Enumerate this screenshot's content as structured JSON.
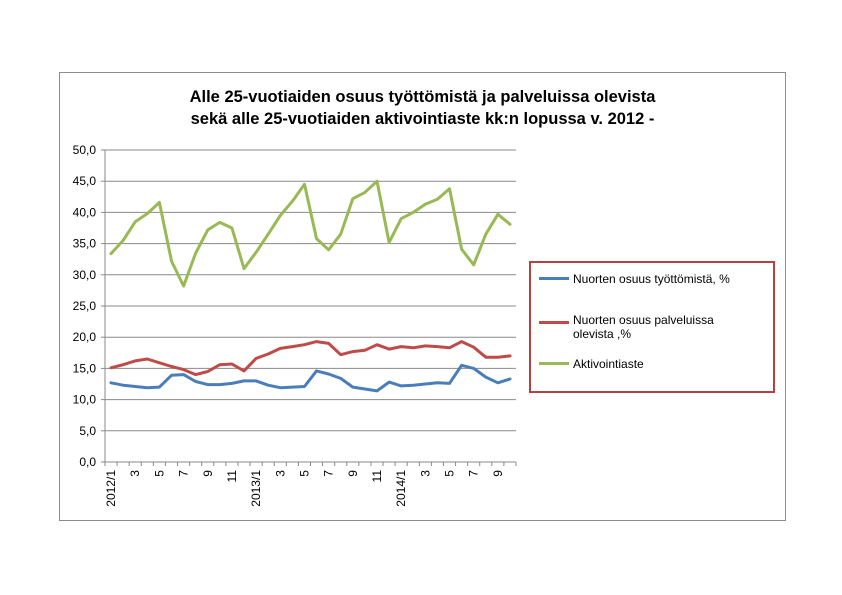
{
  "chart_data": {
    "type": "line",
    "title_lines": [
      "Alle 25-vuotiaiden osuus työttömistä ja palveluissa olevista",
      "sekä  alle 25-vuotiaiden aktivointiaste kk:n lopussa v. 2012 -"
    ],
    "xlabel": "",
    "ylabel": "",
    "ylim": [
      0,
      50
    ],
    "yticks": [
      "0,0",
      "5,0",
      "10,0",
      "15,0",
      "20,0",
      "25,0",
      "30,0",
      "35,0",
      "40,0",
      "45,0",
      "50,0"
    ],
    "x_tick_labels": [
      "2012/1",
      "",
      "3",
      "",
      "5",
      "",
      "7",
      "",
      "9",
      "",
      "11",
      "",
      "2013/1",
      "",
      "3",
      "",
      "5",
      "",
      "7",
      "",
      "9",
      "",
      "11",
      "",
      "2014/1",
      "",
      "3",
      "",
      "5",
      "",
      "7",
      "",
      "9",
      ""
    ],
    "grid": true,
    "legend_position": "right",
    "series": [
      {
        "name": "Nuorten osuus työttömistä, %",
        "color": "#4a7ebb",
        "values": [
          12.7,
          12.3,
          12.1,
          11.9,
          12.0,
          13.9,
          14.0,
          12.9,
          12.4,
          12.4,
          12.6,
          13.0,
          13.0,
          12.3,
          11.9,
          12.0,
          12.1,
          14.6,
          14.1,
          13.4,
          12.0,
          11.7,
          11.4,
          12.8,
          12.2,
          12.3,
          12.5,
          12.7,
          12.6,
          15.5,
          15.0,
          13.6,
          12.7,
          13.3
        ]
      },
      {
        "name": "Nuorten osuus palveluissa olevista ,%",
        "color": "#be4b48",
        "values": [
          15.1,
          15.6,
          16.2,
          16.5,
          15.9,
          15.3,
          14.8,
          14.0,
          14.5,
          15.6,
          15.7,
          14.6,
          16.6,
          17.3,
          18.2,
          18.5,
          18.8,
          19.3,
          19.0,
          17.2,
          17.7,
          17.9,
          18.8,
          18.1,
          18.5,
          18.3,
          18.6,
          18.5,
          18.3,
          19.3,
          18.4,
          16.8,
          16.8,
          17.0
        ]
      },
      {
        "name": "Aktivointiaste",
        "color": "#98b954",
        "values": [
          33.4,
          35.5,
          38.5,
          39.8,
          41.6,
          32.2,
          28.2,
          33.5,
          37.2,
          38.4,
          37.5,
          31.0,
          33.6,
          36.5,
          39.5,
          41.8,
          44.5,
          35.8,
          34.0,
          36.5,
          42.2,
          43.2,
          45.0,
          35.2,
          39.0,
          40.0,
          41.3,
          42.1,
          43.8,
          34.1,
          31.6,
          36.5,
          39.7,
          38.1
        ]
      }
    ]
  }
}
